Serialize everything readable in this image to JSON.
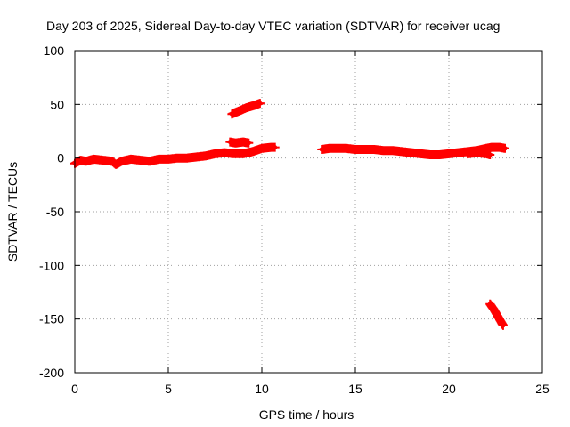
{
  "chart_data": {
    "type": "scatter",
    "title": "Day 203 of 2025, Sidereal Day-to-day VTEC variation (SDTVAR) for receiver ucag",
    "xlabel": "GPS time / hours",
    "ylabel": "SDTVAR / TECUs",
    "xlim": [
      0,
      25
    ],
    "ylim": [
      -200,
      100
    ],
    "xticks": [
      0,
      5,
      10,
      15,
      20,
      25
    ],
    "yticks": [
      -200,
      -150,
      -100,
      -50,
      0,
      50,
      100
    ],
    "grid": true,
    "legend": "none",
    "marker": "plus",
    "color": "#ff0000",
    "series": [
      {
        "points": [
          [
            0.0,
            -5
          ],
          [
            0.3,
            -2
          ],
          [
            0.6,
            -3
          ],
          [
            1.0,
            -1
          ],
          [
            1.5,
            -2
          ],
          [
            2.0,
            -3
          ],
          [
            2.2,
            -6
          ],
          [
            2.5,
            -3
          ],
          [
            3.0,
            -1
          ],
          [
            3.5,
            -2
          ],
          [
            4.0,
            -3
          ],
          [
            4.5,
            -1
          ],
          [
            5.0,
            -1
          ],
          [
            5.5,
            0
          ],
          [
            6.0,
            0
          ],
          [
            6.5,
            1
          ],
          [
            7.0,
            2
          ],
          [
            7.5,
            4
          ],
          [
            8.0,
            5
          ],
          [
            8.5,
            4
          ],
          [
            9.0,
            4
          ],
          [
            9.5,
            6
          ],
          [
            10.0,
            9
          ],
          [
            10.5,
            10
          ],
          [
            10.7,
            10
          ]
        ]
      },
      {
        "points": [
          [
            8.3,
            15
          ],
          [
            8.6,
            14
          ],
          [
            9.0,
            15
          ],
          [
            9.3,
            14
          ]
        ]
      },
      {
        "points": [
          [
            8.4,
            41
          ],
          [
            8.8,
            44
          ],
          [
            9.2,
            47
          ],
          [
            9.6,
            49
          ],
          [
            9.9,
            51
          ]
        ]
      },
      {
        "points": [
          [
            13.2,
            8
          ],
          [
            13.6,
            9
          ],
          [
            14.0,
            9
          ],
          [
            14.5,
            9
          ],
          [
            15.0,
            8
          ],
          [
            15.5,
            8
          ],
          [
            16.0,
            8
          ],
          [
            16.5,
            7
          ],
          [
            17.0,
            7
          ],
          [
            17.5,
            6
          ],
          [
            18.0,
            5
          ],
          [
            18.5,
            4
          ],
          [
            19.0,
            3
          ],
          [
            19.5,
            3
          ],
          [
            20.0,
            4
          ],
          [
            20.5,
            5
          ],
          [
            21.0,
            6
          ],
          [
            21.5,
            7
          ],
          [
            22.0,
            9
          ],
          [
            22.3,
            10
          ],
          [
            22.7,
            10
          ],
          [
            23.0,
            9
          ]
        ]
      },
      {
        "points": [
          [
            21.0,
            4
          ],
          [
            21.5,
            5
          ],
          [
            22.0,
            4
          ],
          [
            22.2,
            3
          ]
        ]
      },
      {
        "points": [
          [
            22.2,
            -136
          ],
          [
            22.4,
            -141
          ],
          [
            22.6,
            -147
          ],
          [
            22.8,
            -153
          ],
          [
            22.9,
            -156
          ]
        ]
      }
    ]
  }
}
